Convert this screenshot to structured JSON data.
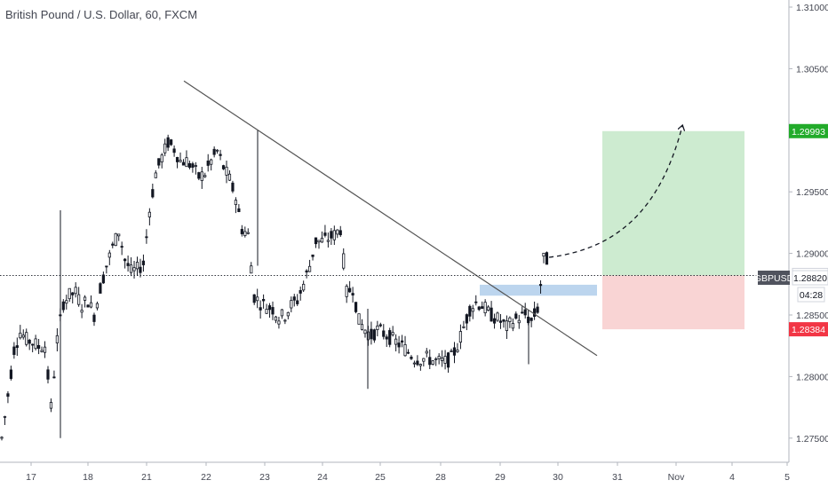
{
  "chart_data": {
    "type": "candlestick",
    "title": "British Pound / U.S. Dollar, 60, FXCM",
    "y_ticks": [
      "1.31000",
      "1.30500",
      "1.30000",
      "1.29500",
      "1.29000",
      "1.28500",
      "1.28000",
      "1.27500"
    ],
    "ylim": [
      1.2713,
      1.3116
    ],
    "x_ticks": [
      "17",
      "18",
      "21",
      "22",
      "23",
      "24",
      "25",
      "28",
      "29",
      "30",
      "31",
      "Nov",
      "4",
      "5"
    ],
    "price_series": [
      1.275,
      1.2785,
      1.2822,
      1.2836,
      1.283,
      1.2828,
      1.2824,
      1.2825,
      1.2775,
      1.283,
      1.286,
      1.2866,
      1.2868,
      1.2858,
      1.2862,
      1.285,
      1.2872,
      1.289,
      1.2905,
      1.2918,
      1.2895,
      1.2885,
      1.2887,
      1.2892,
      1.2935,
      1.2965,
      1.2978,
      1.299,
      1.2985,
      1.2975,
      1.2975,
      1.297,
      1.2962,
      1.2965,
      1.2975,
      1.2983,
      1.297,
      1.296,
      1.2945,
      1.292,
      1.2915,
      1.2865,
      1.286,
      1.2857,
      1.2855,
      1.2848,
      1.285,
      1.2858,
      1.2862,
      1.2875,
      1.289,
      1.291,
      1.291,
      1.2912,
      1.2915,
      1.292,
      1.2868,
      1.2872,
      1.2845,
      1.2838,
      1.2833,
      1.2838,
      1.2835,
      1.2832,
      1.2828,
      1.2825,
      1.282,
      1.2815,
      1.2814,
      1.2815,
      1.2813,
      1.2812,
      1.2812,
      1.2815,
      1.2825,
      1.284,
      1.2855,
      1.286,
      1.2858,
      1.2852,
      1.2848,
      1.2845,
      1.284,
      1.2845,
      1.2848,
      1.285,
      1.2845,
      1.2855,
      1.2895
    ],
    "trendline": {
      "start": [
        "17",
        1.304
      ],
      "end": [
        "31",
        1.2817
      ]
    },
    "entry_zone": {
      "low": 1.287,
      "high": 1.2876
    },
    "take_profit": 1.29993,
    "current_price": 1.28821,
    "stop_loss": 1.28384,
    "projection": "dashed arrow toward target",
    "price_tags": [
      {
        "text": "1.29993",
        "color": "#22ab2a"
      },
      {
        "text": "1.28821",
        "color": "#131722"
      },
      {
        "text": "GBPUSD",
        "color": "#50535e"
      },
      {
        "text": "1.28820",
        "color": "#131722"
      },
      {
        "text": "04:28",
        "color": "#131722"
      },
      {
        "text": "1.28384",
        "color": "#f23645"
      }
    ],
    "colors": {
      "candle": "#131722",
      "target_zone": "#cdebd0",
      "stop_zone": "#f9d4d4",
      "entry_zone": "#bcd5ee",
      "trendline": "#555555"
    },
    "grid": false
  }
}
